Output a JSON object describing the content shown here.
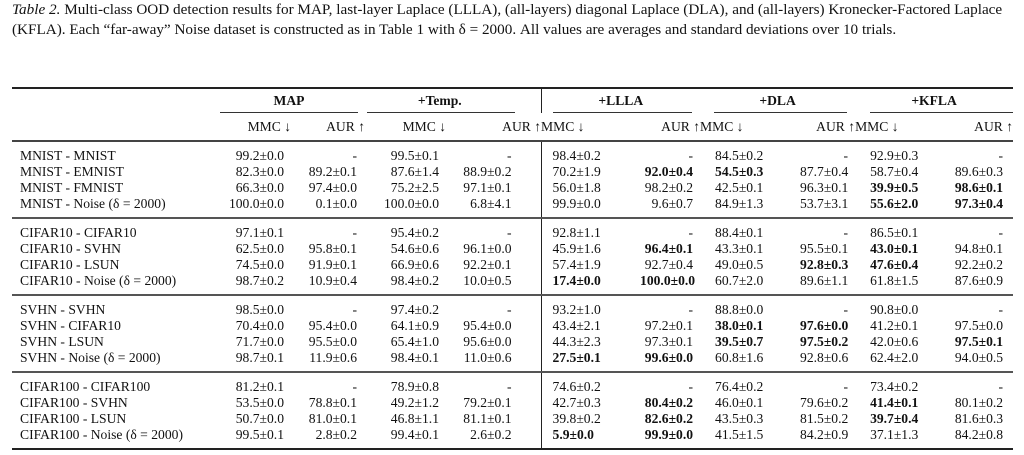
{
  "caption": {
    "label": "Table 2.",
    "text": "Multi-class OOD detection results for MAP, last-layer Laplace (LLLA), (all-layers) diagonal Laplace (DLA), and (all-layers) Kronecker-Factored Laplace (KFLA). Each “far-away” Noise dataset is constructed as in Table 1 with δ = 2000. All values are averages and standard deviations over 10 trials."
  },
  "header": {
    "methods": [
      "MAP",
      "+Temp.",
      "+LLLA",
      "+DLA",
      "+KFLA"
    ],
    "metrics": [
      "MMC ↓",
      "AUR ↑",
      "MMC ↓",
      "AUR ↑",
      "MMC ↓",
      "AUR ↑",
      "MMC ↓",
      "AUR ↑",
      "MMC ↓",
      "AUR ↑"
    ]
  },
  "groups": [
    {
      "rows": [
        {
          "label": "MNIST - MNIST",
          "cells": [
            [
              "99.2±0.0",
              0
            ],
            [
              "-",
              0
            ],
            [
              "99.5±0.1",
              0
            ],
            [
              "-",
              0
            ],
            [
              "98.4±0.2",
              0
            ],
            [
              "-",
              0
            ],
            [
              "84.5±0.2",
              0
            ],
            [
              "-",
              0
            ],
            [
              "92.9±0.3",
              0
            ],
            [
              "-",
              0
            ]
          ]
        },
        {
          "label": "MNIST - EMNIST",
          "cells": [
            [
              "82.3±0.0",
              0
            ],
            [
              "89.2±0.1",
              0
            ],
            [
              "87.6±1.4",
              0
            ],
            [
              "88.9±0.2",
              0
            ],
            [
              "70.2±1.9",
              0
            ],
            [
              "92.0±0.4",
              1
            ],
            [
              "54.5±0.3",
              1
            ],
            [
              "87.7±0.4",
              0
            ],
            [
              "58.7±0.4",
              0
            ],
            [
              "89.6±0.3",
              0
            ]
          ]
        },
        {
          "label": "MNIST - FMNIST",
          "cells": [
            [
              "66.3±0.0",
              0
            ],
            [
              "97.4±0.0",
              0
            ],
            [
              "75.2±2.5",
              0
            ],
            [
              "97.1±0.1",
              0
            ],
            [
              "56.0±1.8",
              0
            ],
            [
              "98.2±0.2",
              0
            ],
            [
              "42.5±0.1",
              0
            ],
            [
              "96.3±0.1",
              0
            ],
            [
              "39.9±0.5",
              1
            ],
            [
              "98.6±0.1",
              1
            ]
          ]
        },
        {
          "label": "MNIST - Noise (δ = 2000)",
          "cells": [
            [
              "100.0±0.0",
              0
            ],
            [
              "0.1±0.0",
              0
            ],
            [
              "100.0±0.0",
              0
            ],
            [
              "6.8±4.1",
              0
            ],
            [
              "99.9±0.0",
              0
            ],
            [
              "9.6±0.7",
              0
            ],
            [
              "84.9±1.3",
              0
            ],
            [
              "53.7±3.1",
              0
            ],
            [
              "55.6±2.0",
              1
            ],
            [
              "97.3±0.4",
              1
            ]
          ]
        }
      ]
    },
    {
      "rows": [
        {
          "label": "CIFAR10 - CIFAR10",
          "cells": [
            [
              "97.1±0.1",
              0
            ],
            [
              "-",
              0
            ],
            [
              "95.4±0.2",
              0
            ],
            [
              "-",
              0
            ],
            [
              "92.8±1.1",
              0
            ],
            [
              "-",
              0
            ],
            [
              "88.4±0.1",
              0
            ],
            [
              "-",
              0
            ],
            [
              "86.5±0.1",
              0
            ],
            [
              "-",
              0
            ]
          ]
        },
        {
          "label": "CIFAR10 - SVHN",
          "cells": [
            [
              "62.5±0.0",
              0
            ],
            [
              "95.8±0.1",
              0
            ],
            [
              "54.6±0.6",
              0
            ],
            [
              "96.1±0.0",
              0
            ],
            [
              "45.9±1.6",
              0
            ],
            [
              "96.4±0.1",
              1
            ],
            [
              "43.3±0.1",
              0
            ],
            [
              "95.5±0.1",
              0
            ],
            [
              "43.0±0.1",
              1
            ],
            [
              "94.8±0.1",
              0
            ]
          ]
        },
        {
          "label": "CIFAR10 - LSUN",
          "cells": [
            [
              "74.5±0.0",
              0
            ],
            [
              "91.9±0.1",
              0
            ],
            [
              "66.9±0.6",
              0
            ],
            [
              "92.2±0.1",
              0
            ],
            [
              "57.4±1.9",
              0
            ],
            [
              "92.7±0.4",
              0
            ],
            [
              "49.0±0.5",
              0
            ],
            [
              "92.8±0.3",
              1
            ],
            [
              "47.6±0.4",
              1
            ],
            [
              "92.2±0.2",
              0
            ]
          ]
        },
        {
          "label": "CIFAR10 - Noise (δ = 2000)",
          "cells": [
            [
              "98.7±0.2",
              0
            ],
            [
              "10.9±0.4",
              0
            ],
            [
              "98.4±0.2",
              0
            ],
            [
              "10.0±0.5",
              0
            ],
            [
              "17.4±0.0",
              1
            ],
            [
              "100.0±0.0",
              1
            ],
            [
              "60.7±2.0",
              0
            ],
            [
              "89.6±1.1",
              0
            ],
            [
              "61.8±1.5",
              0
            ],
            [
              "87.6±0.9",
              0
            ]
          ]
        }
      ]
    },
    {
      "rows": [
        {
          "label": "SVHN - SVHN",
          "cells": [
            [
              "98.5±0.0",
              0
            ],
            [
              "-",
              0
            ],
            [
              "97.4±0.2",
              0
            ],
            [
              "-",
              0
            ],
            [
              "93.2±1.0",
              0
            ],
            [
              "-",
              0
            ],
            [
              "88.8±0.0",
              0
            ],
            [
              "-",
              0
            ],
            [
              "90.8±0.0",
              0
            ],
            [
              "-",
              0
            ]
          ]
        },
        {
          "label": "SVHN - CIFAR10",
          "cells": [
            [
              "70.4±0.0",
              0
            ],
            [
              "95.4±0.0",
              0
            ],
            [
              "64.1±0.9",
              0
            ],
            [
              "95.4±0.0",
              0
            ],
            [
              "43.4±2.1",
              0
            ],
            [
              "97.2±0.1",
              0
            ],
            [
              "38.0±0.1",
              1
            ],
            [
              "97.6±0.0",
              1
            ],
            [
              "41.2±0.1",
              0
            ],
            [
              "97.5±0.0",
              0
            ]
          ]
        },
        {
          "label": "SVHN - LSUN",
          "cells": [
            [
              "71.7±0.0",
              0
            ],
            [
              "95.5±0.0",
              0
            ],
            [
              "65.4±1.0",
              0
            ],
            [
              "95.6±0.0",
              0
            ],
            [
              "44.3±2.3",
              0
            ],
            [
              "97.3±0.1",
              0
            ],
            [
              "39.5±0.7",
              1
            ],
            [
              "97.5±0.2",
              1
            ],
            [
              "42.0±0.6",
              0
            ],
            [
              "97.5±0.1",
              1
            ]
          ]
        },
        {
          "label": "SVHN - Noise (δ = 2000)",
          "cells": [
            [
              "98.7±0.1",
              0
            ],
            [
              "11.9±0.6",
              0
            ],
            [
              "98.4±0.1",
              0
            ],
            [
              "11.0±0.6",
              0
            ],
            [
              "27.5±0.1",
              1
            ],
            [
              "99.6±0.0",
              1
            ],
            [
              "60.8±1.6",
              0
            ],
            [
              "92.8±0.6",
              0
            ],
            [
              "62.4±2.0",
              0
            ],
            [
              "94.0±0.5",
              0
            ]
          ]
        }
      ]
    },
    {
      "rows": [
        {
          "label": "CIFAR100 - CIFAR100",
          "cells": [
            [
              "81.2±0.1",
              0
            ],
            [
              "-",
              0
            ],
            [
              "78.9±0.8",
              0
            ],
            [
              "-",
              0
            ],
            [
              "74.6±0.2",
              0
            ],
            [
              "-",
              0
            ],
            [
              "76.4±0.2",
              0
            ],
            [
              "-",
              0
            ],
            [
              "73.4±0.2",
              0
            ],
            [
              "-",
              0
            ]
          ]
        },
        {
          "label": "CIFAR100 - SVHN",
          "cells": [
            [
              "53.5±0.0",
              0
            ],
            [
              "78.8±0.1",
              0
            ],
            [
              "49.2±1.2",
              0
            ],
            [
              "79.2±0.1",
              0
            ],
            [
              "42.7±0.3",
              0
            ],
            [
              "80.4±0.2",
              1
            ],
            [
              "46.0±0.1",
              0
            ],
            [
              "79.6±0.2",
              0
            ],
            [
              "41.4±0.1",
              1
            ],
            [
              "80.1±0.2",
              0
            ]
          ]
        },
        {
          "label": "CIFAR100 - LSUN",
          "cells": [
            [
              "50.7±0.0",
              0
            ],
            [
              "81.0±0.1",
              0
            ],
            [
              "46.8±1.1",
              0
            ],
            [
              "81.1±0.1",
              0
            ],
            [
              "39.8±0.2",
              0
            ],
            [
              "82.6±0.2",
              1
            ],
            [
              "43.5±0.3",
              0
            ],
            [
              "81.5±0.2",
              0
            ],
            [
              "39.7±0.4",
              1
            ],
            [
              "81.6±0.3",
              0
            ]
          ]
        },
        {
          "label": "CIFAR100 - Noise (δ = 2000)",
          "cells": [
            [
              "99.5±0.1",
              0
            ],
            [
              "2.8±0.2",
              0
            ],
            [
              "99.4±0.1",
              0
            ],
            [
              "2.6±0.2",
              0
            ],
            [
              "5.9±0.0",
              1
            ],
            [
              "99.9±0.0",
              1
            ],
            [
              "41.5±1.5",
              0
            ],
            [
              "84.2±0.9",
              0
            ],
            [
              "37.1±1.3",
              0
            ],
            [
              "84.2±0.8",
              0
            ]
          ]
        }
      ]
    }
  ]
}
